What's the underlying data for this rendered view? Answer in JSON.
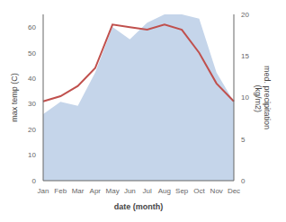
{
  "chart_data": {
    "type": "line",
    "categories": [
      "Jan",
      "Feb",
      "Mar",
      "Apr",
      "May",
      "Jun",
      "Jul",
      "Aug",
      "Sep",
      "Oct",
      "Nov",
      "Dec"
    ],
    "series": [
      {
        "type": "area",
        "axis": "y2",
        "color": "#c5d5ea",
        "values": [
          8.0,
          9.5,
          9.0,
          13.0,
          18.5,
          17.0,
          19.0,
          20.0,
          20.0,
          19.5,
          13.0,
          9.5
        ]
      },
      {
        "type": "line",
        "color": "#c0504d",
        "values": [
          31,
          33,
          37,
          44,
          61,
          60,
          59,
          61,
          59,
          50,
          38,
          31
        ]
      }
    ],
    "xlabel": "date (month)",
    "ylabel": "max temp (C)",
    "y2label": "med. precipitation\n (kg/m2)",
    "ylim": [
      0,
      65
    ],
    "yticks": [
      0,
      10,
      20,
      30,
      40,
      50,
      60
    ],
    "y2lim": [
      0,
      20
    ],
    "y2ticks": [
      0,
      5,
      10,
      15,
      20
    ],
    "grid": false
  }
}
